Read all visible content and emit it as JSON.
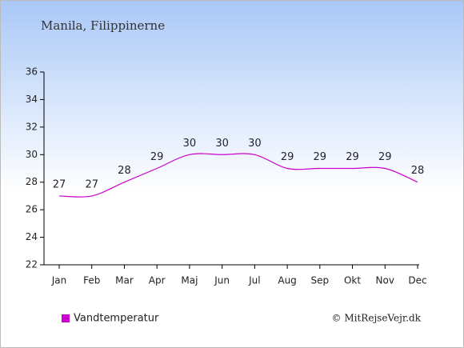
{
  "chart_data": {
    "type": "line",
    "title": "Manila, Filippinerne",
    "categories": [
      "Jan",
      "Feb",
      "Mar",
      "Apr",
      "Maj",
      "Jun",
      "Jul",
      "Aug",
      "Sep",
      "Okt",
      "Nov",
      "Dec"
    ],
    "series": [
      {
        "name": "Vandtemperatur",
        "color": "#cc00cc",
        "values": [
          27,
          27,
          28,
          29,
          30,
          30,
          30,
          29,
          29,
          29,
          29,
          28
        ]
      }
    ],
    "ylim": [
      22,
      36
    ],
    "yticks": [
      22,
      24,
      26,
      28,
      30,
      32,
      34,
      36
    ],
    "credit": "© MitRejseVejr.dk"
  }
}
